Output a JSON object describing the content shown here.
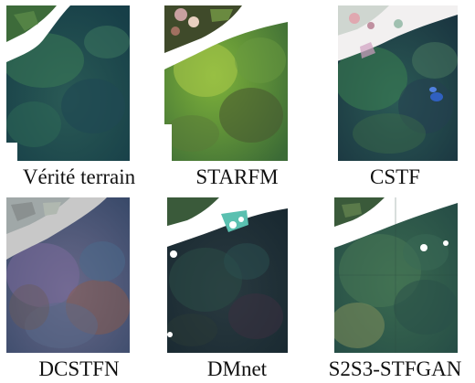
{
  "panels": [
    {
      "caption": "Vérité terrain"
    },
    {
      "caption": "STARFM"
    },
    {
      "caption": "CSTF"
    },
    {
      "caption": "DCSTFN"
    },
    {
      "caption": "DMnet"
    },
    {
      "caption": "S2S3-STFGAN"
    }
  ]
}
